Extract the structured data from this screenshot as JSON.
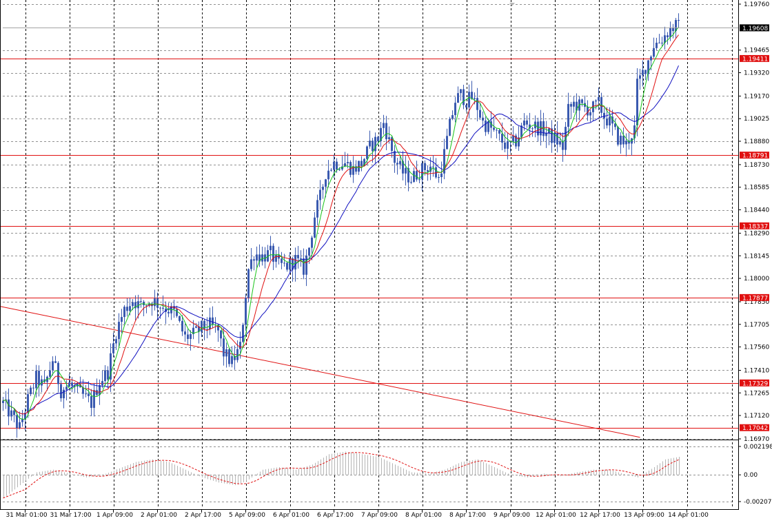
{
  "chart_data": {
    "type": "candlestick",
    "symbol": "",
    "colors": {
      "candle": "#3a5ab0",
      "ma_fast": "#18c418",
      "ma_mid": "#e01010",
      "ma_slow": "#1010c0",
      "hline": "#e01010",
      "trendline": "#e01010",
      "grid": "#909090",
      "current_price_label_bg": "#000000",
      "level_label_bg": "#e01010",
      "osc_hist": "#b4b4b4",
      "osc_signal": "#e01010"
    },
    "price_axis": {
      "ymin": 1.1697,
      "ymax": 1.1976,
      "ticks": [
        "1.19760",
        "1.19465",
        "1.19320",
        "1.19170",
        "1.19025",
        "1.18880",
        "1.18730",
        "1.18585",
        "1.18440",
        "1.18290",
        "1.18145",
        "1.18000",
        "1.17850",
        "1.17705",
        "1.17560",
        "1.17410",
        "1.17265",
        "1.17120",
        "1.16970"
      ]
    },
    "current_price": "1.19608",
    "levels": [
      "1.19411",
      "1.18791",
      "1.18337",
      "1.17877",
      "1.17329",
      "1.17042"
    ],
    "trendline": {
      "start": {
        "bar": -1,
        "price": 1.1782
      },
      "end": {
        "bar": 231,
        "price": 1.1698
      }
    },
    "time_labels": [
      {
        "label": "31 Mar 01:00",
        "bar": 8
      },
      {
        "label": "31 Mar 17:00",
        "bar": 24
      },
      {
        "label": "1 Apr 09:00",
        "bar": 40
      },
      {
        "label": "2 Apr 01:00",
        "bar": 56
      },
      {
        "label": "2 Apr 17:00",
        "bar": 72
      },
      {
        "label": "5 Apr 09:00",
        "bar": 88
      },
      {
        "label": "6 Apr 01:00",
        "bar": 104
      },
      {
        "label": "6 Apr 17:00",
        "bar": 120
      },
      {
        "label": "7 Apr 09:00",
        "bar": 136
      },
      {
        "label": "8 Apr 01:00",
        "bar": 152
      },
      {
        "label": "8 Apr 17:00",
        "bar": 168
      },
      {
        "label": "9 Apr 09:00",
        "bar": 184
      },
      {
        "label": "12 Apr 01:00",
        "bar": 200
      },
      {
        "label": "12 Apr 17:00",
        "bar": 216
      },
      {
        "label": "13 Apr 09:00",
        "bar": 232
      },
      {
        "label": "14 Apr 01:00",
        "bar": 248
      }
    ],
    "oscillator": {
      "ymin": -0.002071,
      "ymax": 0.002198,
      "ticks": [
        "0.002198",
        "0.00",
        "-0.002071"
      ]
    },
    "candle_close_anchors": [
      [
        0,
        1.172
      ],
      [
        3,
        1.1712
      ],
      [
        6,
        1.1704
      ],
      [
        9,
        1.1722
      ],
      [
        12,
        1.1736
      ],
      [
        15,
        1.173
      ],
      [
        18,
        1.1748
      ],
      [
        21,
        1.1728
      ],
      [
        24,
        1.1732
      ],
      [
        28,
        1.1726
      ],
      [
        32,
        1.172
      ],
      [
        35,
        1.1734
      ],
      [
        38,
        1.174
      ],
      [
        41,
        1.1766
      ],
      [
        44,
        1.178
      ],
      [
        47,
        1.1786
      ],
      [
        50,
        1.1782
      ],
      [
        54,
        1.1786
      ],
      [
        58,
        1.1782
      ],
      [
        62,
        1.1778
      ],
      [
        64,
        1.177
      ],
      [
        66,
        1.1762
      ],
      [
        69,
        1.1764
      ],
      [
        72,
        1.1768
      ],
      [
        75,
        1.177
      ],
      [
        78,
        1.1766
      ],
      [
        80,
        1.1752
      ],
      [
        83,
        1.1746
      ],
      [
        86,
        1.1756
      ],
      [
        88,
        1.179
      ],
      [
        89,
        1.1806
      ],
      [
        91,
        1.1816
      ],
      [
        94,
        1.1814
      ],
      [
        97,
        1.1816
      ],
      [
        100,
        1.1808
      ],
      [
        103,
        1.1808
      ],
      [
        106,
        1.1812
      ],
      [
        109,
        1.1806
      ],
      [
        111,
        1.182
      ],
      [
        113,
        1.184
      ],
      [
        115,
        1.1852
      ],
      [
        117,
        1.1868
      ],
      [
        120,
        1.1874
      ],
      [
        124,
        1.1874
      ],
      [
        127,
        1.187
      ],
      [
        130,
        1.1874
      ],
      [
        133,
        1.1884
      ],
      [
        136,
        1.189
      ],
      [
        138,
        1.19
      ],
      [
        140,
        1.1888
      ],
      [
        142,
        1.1876
      ],
      [
        145,
        1.1868
      ],
      [
        148,
        1.1864
      ],
      [
        152,
        1.187
      ],
      [
        155,
        1.1872
      ],
      [
        158,
        1.1864
      ],
      [
        160,
        1.188
      ],
      [
        162,
        1.1898
      ],
      [
        164,
        1.1914
      ],
      [
        166,
        1.1918
      ],
      [
        168,
        1.1914
      ],
      [
        170,
        1.1916
      ],
      [
        172,
        1.191
      ],
      [
        174,
        1.19
      ],
      [
        177,
        1.1896
      ],
      [
        180,
        1.189
      ],
      [
        183,
        1.1884
      ],
      [
        186,
        1.1888
      ],
      [
        189,
        1.19
      ],
      [
        192,
        1.1898
      ],
      [
        195,
        1.1896
      ],
      [
        198,
        1.1892
      ],
      [
        201,
        1.1888
      ],
      [
        203,
        1.1884
      ],
      [
        205,
        1.1908
      ],
      [
        207,
        1.1912
      ],
      [
        210,
        1.191
      ],
      [
        213,
        1.1908
      ],
      [
        216,
        1.1912
      ],
      [
        218,
        1.1904
      ],
      [
        220,
        1.19
      ],
      [
        223,
        1.189
      ],
      [
        226,
        1.1886
      ],
      [
        229,
        1.1896
      ],
      [
        230,
        1.1924
      ],
      [
        232,
        1.1932
      ],
      [
        234,
        1.194
      ],
      [
        236,
        1.195
      ],
      [
        238,
        1.1952
      ],
      [
        240,
        1.1956
      ],
      [
        242,
        1.196
      ],
      [
        244,
        1.1962
      ],
      [
        245,
        1.1961
      ]
    ],
    "osc_anchors": [
      [
        0,
        -0.0018
      ],
      [
        6,
        -0.0008
      ],
      [
        12,
        0.0002
      ],
      [
        18,
        0.0004
      ],
      [
        24,
        0.0001
      ],
      [
        30,
        -0.0002
      ],
      [
        36,
        0.0
      ],
      [
        42,
        0.0005
      ],
      [
        48,
        0.001
      ],
      [
        54,
        0.0012
      ],
      [
        60,
        0.001
      ],
      [
        66,
        0.0004
      ],
      [
        72,
        -0.0002
      ],
      [
        78,
        -0.0006
      ],
      [
        84,
        -0.0008
      ],
      [
        88,
        -0.0005
      ],
      [
        94,
        0.0004
      ],
      [
        100,
        0.0006
      ],
      [
        106,
        0.0004
      ],
      [
        112,
        0.0008
      ],
      [
        118,
        0.0016
      ],
      [
        124,
        0.0018
      ],
      [
        130,
        0.0016
      ],
      [
        136,
        0.0014
      ],
      [
        142,
        0.0008
      ],
      [
        148,
        0.0002
      ],
      [
        154,
        0.0001
      ],
      [
        160,
        0.0004
      ],
      [
        166,
        0.001
      ],
      [
        172,
        0.0012
      ],
      [
        178,
        0.0006
      ],
      [
        184,
        0.0
      ],
      [
        190,
        -0.0002
      ],
      [
        196,
        0.0001
      ],
      [
        202,
        -0.0001
      ],
      [
        208,
        0.0002
      ],
      [
        214,
        0.0004
      ],
      [
        220,
        0.0004
      ],
      [
        226,
        0.0
      ],
      [
        230,
        -0.0002
      ],
      [
        236,
        0.0006
      ],
      [
        240,
        0.0012
      ],
      [
        245,
        0.0014
      ]
    ],
    "ma_periods": [
      5,
      10,
      20
    ],
    "bar_count": 246
  }
}
